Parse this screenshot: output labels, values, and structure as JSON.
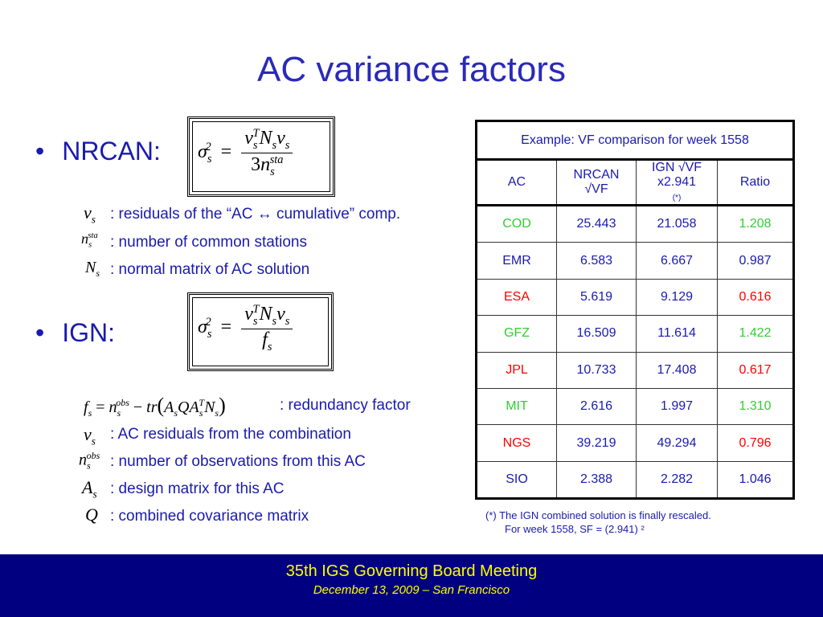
{
  "slide": {
    "title": "AC variance factors"
  },
  "nrcan": {
    "label": "NRCAN:",
    "definitions": [
      {
        "text": ": residuals of the “AC ↔ cumulative” comp."
      },
      {
        "text": ": number of common stations"
      },
      {
        "text": ": normal matrix of AC solution"
      }
    ]
  },
  "ign": {
    "label": "IGN:",
    "redundancy_text": ": redundancy factor",
    "definitions": [
      {
        "text": ": AC residuals from the combination"
      },
      {
        "text": ": number of observations from this AC"
      },
      {
        "text": ": design matrix for this AC"
      },
      {
        "text": ": combined covariance matrix"
      }
    ]
  },
  "table": {
    "caption": "Example: VF comparison for week 1558",
    "headers": {
      "ac": "AC",
      "nrcan": "NRCAN √VF",
      "ign": "IGN √VF x2.941",
      "ign_note": "(*)",
      "ratio": "Ratio"
    },
    "rows": [
      {
        "ac": "COD",
        "nrcan": "25.443",
        "ign": "21.058",
        "ratio": "1.208",
        "color": "#33cc33"
      },
      {
        "ac": "EMR",
        "nrcan": "6.583",
        "ign": "6.667",
        "ratio": "0.987",
        "color": "#1a1ab0"
      },
      {
        "ac": "ESA",
        "nrcan": "5.619",
        "ign": "9.129",
        "ratio": "0.616",
        "color": "#ff0000"
      },
      {
        "ac": "GFZ",
        "nrcan": "16.509",
        "ign": "11.614",
        "ratio": "1.422",
        "color": "#33cc33"
      },
      {
        "ac": "JPL",
        "nrcan": "10.733",
        "ign": "17.408",
        "ratio": "0.617",
        "color": "#ff0000"
      },
      {
        "ac": "MIT",
        "nrcan": "2.616",
        "ign": "1.997",
        "ratio": "1.310",
        "color": "#33cc33"
      },
      {
        "ac": "NGS",
        "nrcan": "39.219",
        "ign": "49.294",
        "ratio": "0.796",
        "color": "#ff0000"
      },
      {
        "ac": "SIO",
        "nrcan": "2.388",
        "ign": "2.282",
        "ratio": "1.046",
        "color": "#1a1ab0"
      }
    ]
  },
  "note": {
    "line1": "(*) The IGN combined solution is finally rescaled.",
    "line2": "For week 1558, SF = (2.941) ²"
  },
  "footer": {
    "line1": "35th IGS Governing Board Meeting",
    "line2": "December 13, 2009 – San Francisco"
  }
}
